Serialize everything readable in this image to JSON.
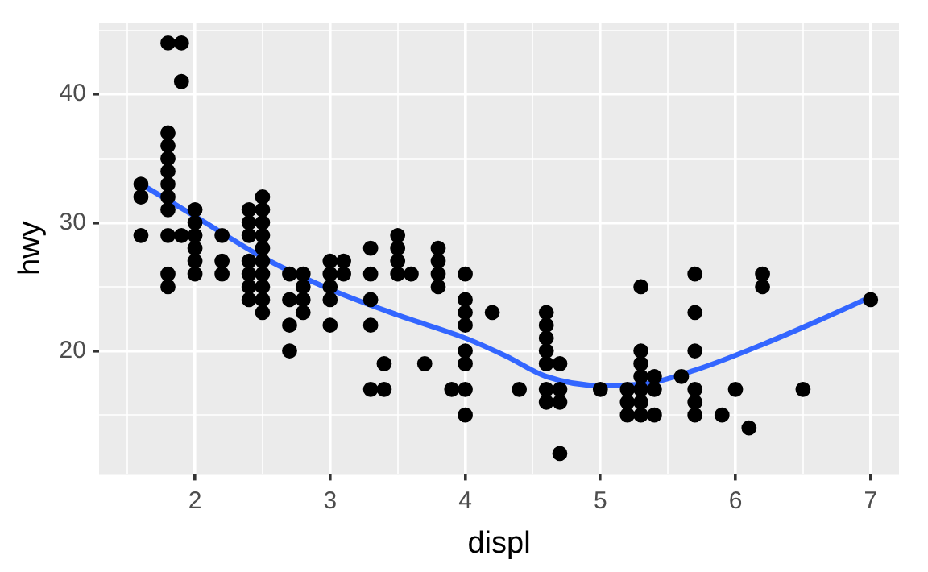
{
  "chart_data": {
    "type": "scatter",
    "xlabel": "displ",
    "ylabel": "hwy",
    "xlim": [
      1.29,
      7.21
    ],
    "ylim": [
      10.4,
      45.6
    ],
    "xticks": [
      {
        "value": 1.5,
        "label": null
      },
      2,
      {
        "value": 2.5,
        "label": null
      },
      3,
      {
        "value": 3.5,
        "label": null
      },
      4,
      {
        "value": 4.5,
        "label": null
      },
      5,
      {
        "value": 5.5,
        "label": null
      },
      6,
      {
        "value": 6.5,
        "label": null
      },
      7
    ],
    "yticks": [
      {
        "value": 15,
        "label": null
      },
      20,
      {
        "value": 25,
        "label": null
      },
      30,
      {
        "value": 35,
        "label": null
      },
      40,
      {
        "value": 45,
        "label": null
      }
    ],
    "grid": true,
    "legend": false,
    "marker": "circle",
    "series": [
      {
        "color": "#000000",
        "x": [
          1.6,
          1.6,
          1.6,
          1.8,
          1.8,
          1.8,
          1.8,
          1.8,
          1.8,
          1.8,
          1.8,
          1.8,
          1.8,
          1.8,
          1.9,
          1.9,
          1.9,
          2.0,
          2.0,
          2.0,
          2.0,
          2.0,
          2.0,
          2.2,
          2.2,
          2.2,
          2.4,
          2.4,
          2.4,
          2.4,
          2.4,
          2.4,
          2.4,
          2.5,
          2.5,
          2.5,
          2.5,
          2.5,
          2.5,
          2.5,
          2.5,
          2.5,
          2.5,
          2.7,
          2.7,
          2.7,
          2.7,
          2.8,
          2.8,
          2.8,
          2.8,
          3.0,
          3.0,
          3.0,
          3.0,
          3.0,
          3.1,
          3.1,
          3.3,
          3.3,
          3.3,
          3.3,
          3.3,
          3.4,
          3.4,
          3.5,
          3.5,
          3.5,
          3.5,
          3.6,
          3.7,
          3.8,
          3.8,
          3.8,
          3.8,
          3.9,
          4.0,
          4.0,
          4.0,
          4.0,
          4.0,
          4.0,
          4.0,
          4.0,
          4.2,
          4.4,
          4.6,
          4.6,
          4.6,
          4.6,
          4.6,
          4.6,
          4.6,
          4.7,
          4.7,
          4.7,
          4.7,
          5.0,
          5.2,
          5.2,
          5.2,
          5.3,
          5.3,
          5.3,
          5.3,
          5.3,
          5.3,
          5.3,
          5.4,
          5.4,
          5.4,
          5.6,
          5.7,
          5.7,
          5.7,
          5.7,
          5.7,
          5.7,
          5.9,
          6.0,
          6.1,
          6.2,
          6.2,
          6.5,
          7.0
        ],
        "values": [
          33,
          32,
          29,
          37,
          36,
          35,
          34,
          33,
          32,
          31,
          29,
          26,
          25,
          44,
          44,
          41,
          29,
          31,
          30,
          29,
          28,
          27,
          26,
          29,
          27,
          26,
          31,
          30,
          29,
          27,
          26,
          25,
          24,
          32,
          31,
          30,
          29,
          28,
          27,
          26,
          25,
          24,
          23,
          26,
          24,
          22,
          20,
          26,
          25,
          24,
          23,
          27,
          26,
          25,
          24,
          22,
          27,
          26,
          28,
          26,
          24,
          22,
          17,
          19,
          17,
          29,
          28,
          27,
          26,
          26,
          19,
          28,
          27,
          26,
          25,
          17,
          26,
          24,
          23,
          22,
          20,
          19,
          17,
          15,
          23,
          17,
          23,
          22,
          21,
          20,
          19,
          17,
          16,
          19,
          17,
          16,
          12,
          17,
          17,
          16,
          15,
          25,
          20,
          19,
          18,
          17,
          16,
          15,
          18,
          17,
          15,
          18,
          26,
          23,
          20,
          17,
          16,
          15,
          15,
          17,
          14,
          26,
          25,
          17,
          24
        ]
      },
      {
        "type": "line",
        "color": "#3366ff",
        "marker": "none",
        "x": [
          1.6,
          2.0,
          2.5,
          3.0,
          3.5,
          4.0,
          4.3,
          4.6,
          5.0,
          5.3,
          5.7,
          6.2,
          6.6,
          7.0
        ],
        "values": [
          33,
          30.5,
          27.3,
          24.8,
          22.8,
          21,
          19.6,
          18,
          17.3,
          17.4,
          18.5,
          20.5,
          22.3,
          24.2
        ]
      }
    ]
  }
}
